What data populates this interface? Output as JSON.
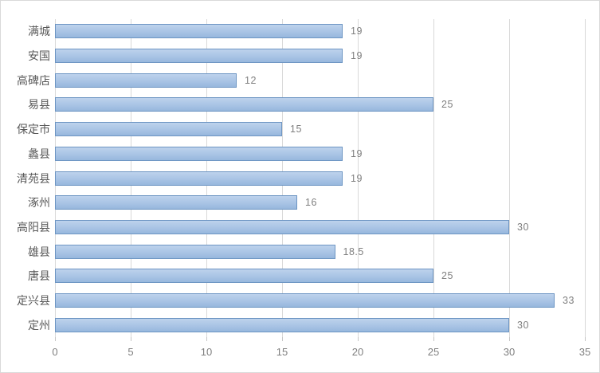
{
  "chart_data": {
    "type": "bar",
    "orientation": "horizontal",
    "title": "",
    "xlabel": "",
    "ylabel": "",
    "legend": "none",
    "grid": "vertical-only",
    "categories": [
      "满城",
      "安国",
      "高碑店",
      "易县",
      "保定市",
      "蠡县",
      "清苑县",
      "涿州",
      "高阳县",
      "雄县",
      "唐县",
      "定兴县",
      "定州"
    ],
    "values": [
      19,
      19,
      12,
      25,
      15,
      19,
      19,
      16,
      30,
      18.5,
      25,
      33,
      30
    ],
    "data_labels": [
      "19",
      "19",
      "12",
      "25",
      "15",
      "19",
      "19",
      "16",
      "30",
      "18.5",
      "25",
      "33",
      "30"
    ],
    "x_ticks": [
      0,
      5,
      10,
      15,
      20,
      25,
      30,
      35
    ],
    "x_tick_labels": [
      "0",
      "5",
      "10",
      "15",
      "20",
      "25",
      "30",
      "35"
    ],
    "xlim": [
      0,
      35
    ],
    "colors": {
      "bar_fill_top": "#bdd2ec",
      "bar_fill_bottom": "#97b7dd",
      "bar_border": "#6d95c3",
      "gridline": "#d9d9d9",
      "axis_text": "#7f7f7f",
      "category_text": "#595959",
      "chart_border": "#d9d9d9",
      "background": "#ffffff"
    }
  }
}
